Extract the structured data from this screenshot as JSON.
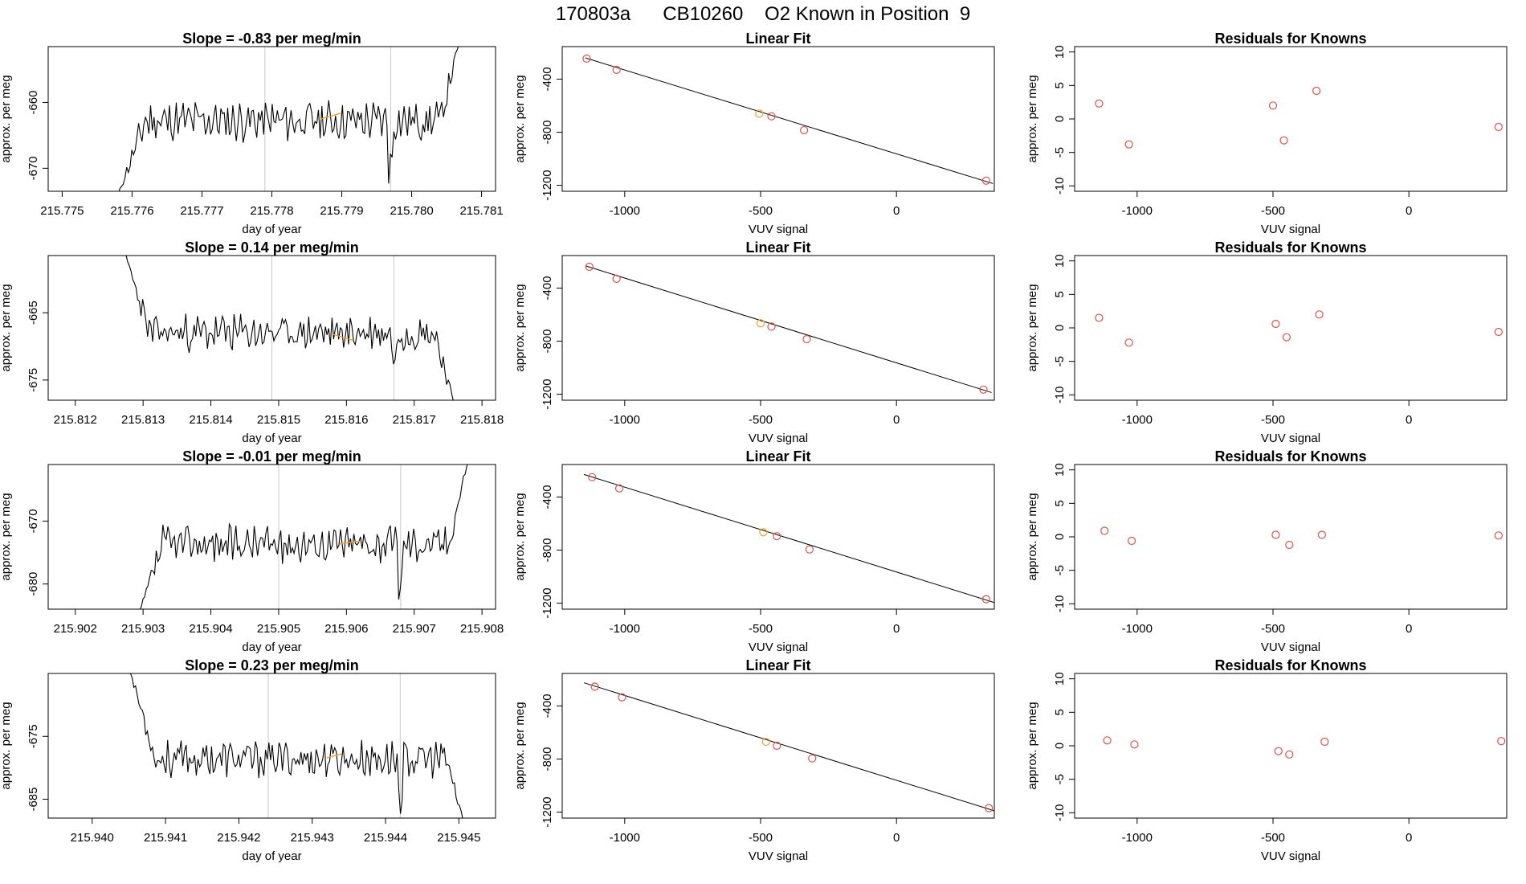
{
  "figure_title": "170803a      CB10260    O2 Known in Position  9",
  "colors": {
    "known": "#d9534f",
    "highlight": "#f0a030",
    "line": "#000000",
    "vline": "#c8c8c8"
  },
  "chart_data": [
    {
      "type": "line",
      "title": "Slope =  -0.83  per meg/min",
      "xlabel": "day of year",
      "ylabel": "approx. per meg",
      "xlim": [
        215.7748,
        215.7812
      ],
      "ylim": [
        -673.5,
        -651.5
      ],
      "x_ticks": [
        "215.775",
        "215.776",
        "215.777",
        "215.778",
        "215.779",
        "215.780",
        "215.781"
      ],
      "y_ticks": [
        "-670",
        "-660"
      ],
      "y_tick_values": [
        -670,
        -660
      ],
      "vlines": [
        215.7779,
        215.7797
      ],
      "trace": {
        "x_start": 215.7758,
        "x_end": 215.7807,
        "base": -662.8,
        "amp": 1.6,
        "start_value": -674,
        "end_value": -650,
        "seed": 11
      },
      "highlight": {
        "x": [
          215.7787,
          215.779
        ],
        "y": [
          -662.5,
          -661.6
        ]
      }
    },
    {
      "type": "scatter",
      "title": "Linear Fit",
      "xlabel": "VUV signal",
      "ylabel": "approx. per meg",
      "xlim": [
        -1230,
        360
      ],
      "ylim": [
        -1245,
        -155
      ],
      "x_ticks": [
        "-1000",
        "-500",
        "0"
      ],
      "x_tick_values": [
        -1000,
        -500,
        0
      ],
      "y_ticks": [
        "-1200",
        "-800",
        "-400"
      ],
      "y_tick_values": [
        -1200,
        -800,
        -400
      ],
      "points": {
        "x": [
          -1140,
          -1030,
          -460,
          -340,
          330
        ],
        "y": [
          -245,
          -330,
          -680,
          -785,
          -1165
        ]
      },
      "highlight_points": {
        "x": [
          -505
        ],
        "y": [
          -660
        ]
      },
      "fit_line": {
        "x": [
          -1145,
          355
        ],
        "y": [
          -240,
          -1187
        ]
      }
    },
    {
      "type": "scatter",
      "title": "Residuals for Knowns",
      "xlabel": "VUV signal",
      "ylabel": "approx. per meg",
      "xlim": [
        -1230,
        360
      ],
      "ylim": [
        -10.8,
        10.8
      ],
      "x_ticks": [
        "-1000",
        "-500",
        "0"
      ],
      "x_tick_values": [
        -1000,
        -500,
        0
      ],
      "y_ticks": [
        "-10",
        "-5",
        "0",
        "5",
        "10"
      ],
      "y_tick_values": [
        -10,
        -5,
        0,
        5,
        10
      ],
      "points": {
        "x": [
          -1140,
          -1030,
          -500,
          -460,
          -340,
          330
        ],
        "y": [
          2.3,
          -3.8,
          2.0,
          -3.2,
          4.2,
          -1.2
        ]
      }
    },
    {
      "type": "line",
      "title": "Slope =  0.14  per meg/min",
      "xlabel": "day of year",
      "ylabel": "approx. per meg",
      "xlim": [
        215.8116,
        215.8182
      ],
      "ylim": [
        -678,
        -656.5
      ],
      "x_ticks": [
        "215.812",
        "215.813",
        "215.814",
        "215.815",
        "215.816",
        "215.817",
        "215.818"
      ],
      "y_ticks": [
        "-675",
        "-665"
      ],
      "y_tick_values": [
        -675,
        -665
      ],
      "vlines": [
        215.8149,
        215.8167
      ],
      "trace": {
        "x_start": 215.8127,
        "x_end": 215.8176,
        "base": -668.0,
        "amp": 1.4,
        "start_value": -655,
        "end_value": -679,
        "seed": 23
      },
      "highlight": {
        "x": [
          215.8158,
          215.8161
        ],
        "y": [
          -668.2,
          -669.1
        ]
      }
    },
    {
      "type": "scatter",
      "title": "Linear Fit",
      "xlabel": "VUV signal",
      "ylabel": "approx. per meg",
      "xlim": [
        -1230,
        360
      ],
      "ylim": [
        -1245,
        -155
      ],
      "x_ticks": [
        "-1000",
        "-500",
        "0"
      ],
      "x_tick_values": [
        -1000,
        -500,
        0
      ],
      "y_ticks": [
        "-1200",
        "-800",
        "-400"
      ],
      "y_tick_values": [
        -1200,
        -800,
        -400
      ],
      "points": {
        "x": [
          -1130,
          -1030,
          -460,
          -330,
          320
        ],
        "y": [
          -240,
          -330,
          -690,
          -785,
          -1165
        ]
      },
      "highlight_points": {
        "x": [
          -500
        ],
        "y": [
          -665
        ]
      },
      "fit_line": {
        "x": [
          -1145,
          350
        ],
        "y": [
          -232,
          -1187
        ]
      }
    },
    {
      "type": "scatter",
      "title": "Residuals for Knowns",
      "xlabel": "VUV signal",
      "ylabel": "approx. per meg",
      "xlim": [
        -1230,
        360
      ],
      "ylim": [
        -10.8,
        10.8
      ],
      "x_ticks": [
        "-1000",
        "-500",
        "0"
      ],
      "x_tick_values": [
        -1000,
        -500,
        0
      ],
      "y_ticks": [
        "-10",
        "-5",
        "0",
        "5",
        "10"
      ],
      "y_tick_values": [
        -10,
        -5,
        0,
        5,
        10
      ],
      "points": {
        "x": [
          -1140,
          -1030,
          -490,
          -450,
          -330,
          330
        ],
        "y": [
          1.5,
          -2.2,
          0.6,
          -1.4,
          2.0,
          -0.6
        ]
      }
    },
    {
      "type": "line",
      "title": "Slope =  -0.01  per meg/min",
      "xlabel": "day of year",
      "ylabel": "approx. per meg",
      "xlim": [
        215.9016,
        215.9082
      ],
      "ylim": [
        -684,
        -661
      ],
      "x_ticks": [
        "215.902",
        "215.903",
        "215.904",
        "215.905",
        "215.906",
        "215.907",
        "215.908"
      ],
      "y_ticks": [
        "-680",
        "-670"
      ],
      "y_tick_values": [
        -680,
        -670
      ],
      "vlines": [
        215.905,
        215.9068
      ],
      "trace": {
        "x_start": 215.9029,
        "x_end": 215.9078,
        "base": -673.6,
        "amp": 1.5,
        "start_value": -686,
        "end_value": -660,
        "seed": 37
      },
      "highlight": {
        "x": [
          215.9059,
          215.9062
        ],
        "y": [
          -673.6,
          -673.2
        ]
      }
    },
    {
      "type": "scatter",
      "title": "Linear Fit",
      "xlabel": "VUV signal",
      "ylabel": "approx. per meg",
      "xlim": [
        -1230,
        360
      ],
      "ylim": [
        -1245,
        -155
      ],
      "x_ticks": [
        "-1000",
        "-500",
        "0"
      ],
      "x_tick_values": [
        -1000,
        -500,
        0
      ],
      "y_ticks": [
        "-1200",
        "-800",
        "-400"
      ],
      "y_tick_values": [
        -1200,
        -800,
        -400
      ],
      "points": {
        "x": [
          -1120,
          -1020,
          -440,
          -320,
          330
        ],
        "y": [
          -250,
          -335,
          -695,
          -795,
          -1170
        ]
      },
      "highlight_points": {
        "x": [
          -490
        ],
        "y": [
          -665
        ]
      },
      "fit_line": {
        "x": [
          -1150,
          360
        ],
        "y": [
          -230,
          -1195
        ]
      }
    },
    {
      "type": "scatter",
      "title": "Residuals for Knowns",
      "xlabel": "VUV signal",
      "ylabel": "approx. per meg",
      "xlim": [
        -1230,
        360
      ],
      "ylim": [
        -10.8,
        10.8
      ],
      "x_ticks": [
        "-1000",
        "-500",
        "0"
      ],
      "x_tick_values": [
        -1000,
        -500,
        0
      ],
      "y_ticks": [
        "-10",
        "-5",
        "0",
        "5",
        "10"
      ],
      "y_tick_values": [
        -10,
        -5,
        0,
        5,
        10
      ],
      "points": {
        "x": [
          -1120,
          -1020,
          -490,
          -440,
          -320,
          330
        ],
        "y": [
          0.9,
          -0.6,
          0.3,
          -1.2,
          0.3,
          0.2
        ]
      }
    },
    {
      "type": "line",
      "title": "Slope =  0.23  per meg/min",
      "xlabel": "day of year",
      "ylabel": "approx. per meg",
      "xlim": [
        215.9394,
        215.9455
      ],
      "ylim": [
        -688,
        -665
      ],
      "x_ticks": [
        "215.940",
        "215.941",
        "215.942",
        "215.943",
        "215.944",
        "215.945"
      ],
      "y_ticks": [
        "-685",
        "-675"
      ],
      "y_tick_values": [
        -685,
        -675
      ],
      "vlines": [
        215.9424,
        215.9442
      ],
      "trace": {
        "x_start": 215.9405,
        "x_end": 215.9451,
        "base": -678.6,
        "amp": 1.5,
        "start_value": -664,
        "end_value": -690,
        "seed": 53
      },
      "highlight": {
        "x": [
          215.9432,
          215.9434
        ],
        "y": [
          -678.4,
          -677.8
        ]
      }
    },
    {
      "type": "scatter",
      "title": "Linear Fit",
      "xlabel": "VUV signal",
      "ylabel": "approx. per meg",
      "xlim": [
        -1230,
        360
      ],
      "ylim": [
        -1245,
        -155
      ],
      "x_ticks": [
        "-1000",
        "-500",
        "0"
      ],
      "x_tick_values": [
        -1000,
        -500,
        0
      ],
      "y_ticks": [
        "-1200",
        "-800",
        "-400"
      ],
      "y_tick_values": [
        -1200,
        -800,
        -400
      ],
      "points": {
        "x": [
          -1110,
          -1010,
          -440,
          -310,
          340
        ],
        "y": [
          -255,
          -335,
          -700,
          -795,
          -1170
        ]
      },
      "highlight_points": {
        "x": [
          -480
        ],
        "y": [
          -670
        ]
      },
      "fit_line": {
        "x": [
          -1150,
          360
        ],
        "y": [
          -225,
          -1190
        ]
      }
    },
    {
      "type": "scatter",
      "title": "Residuals for Knowns",
      "xlabel": "VUV signal",
      "ylabel": "approx. per meg",
      "xlim": [
        -1230,
        360
      ],
      "ylim": [
        -10.8,
        10.8
      ],
      "x_ticks": [
        "-1000",
        "-500",
        "0"
      ],
      "x_tick_values": [
        -1000,
        -500,
        0
      ],
      "y_ticks": [
        "-10",
        "-5",
        "0",
        "5",
        "10"
      ],
      "y_tick_values": [
        -10,
        -5,
        0,
        5,
        10
      ],
      "points": {
        "x": [
          -1110,
          -1010,
          -480,
          -440,
          -310,
          340
        ],
        "y": [
          0.8,
          0.2,
          -0.8,
          -1.3,
          0.6,
          0.7
        ]
      }
    }
  ]
}
